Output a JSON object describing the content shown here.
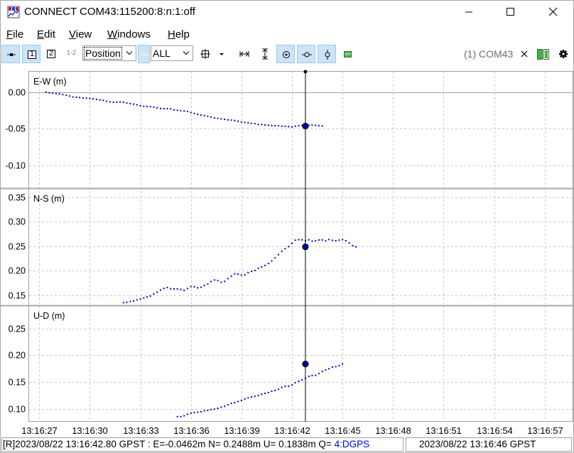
{
  "window": {
    "title": "CONNECT COM43:115200:8:n:1:off",
    "icon": "rtkplot-app-icon"
  },
  "menu": {
    "items": [
      {
        "mnemonic": "F",
        "rest": "ile"
      },
      {
        "mnemonic": "E",
        "rest": "dit"
      },
      {
        "mnemonic": "V",
        "rest": "iew"
      },
      {
        "mnemonic": "W",
        "rest": "indows"
      },
      {
        "mnemonic": "H",
        "rest": "elp"
      }
    ]
  },
  "toolbar": {
    "plot1_label": "1",
    "plot2_label": "2",
    "plot12_label": "1-2",
    "plot_type_value": "Position",
    "sat_filter_value": "ALL",
    "port_label": "(1) COM43"
  },
  "colors": {
    "series": "#0000cc",
    "grid": "#c8c8c8",
    "cursor": "#000000",
    "q_status": "#0000cc"
  },
  "chart_data": {
    "type": "scatter",
    "x_tick_labels": [
      "13:16:27",
      "13:16:30",
      "13:16:33",
      "13:16:36",
      "13:16:39",
      "13:16:42",
      "13:16:45",
      "13:16:48",
      "13:16:51",
      "13:16:54",
      "13:16:57"
    ],
    "x_range_seconds": [
      -0.6,
      31.7
    ],
    "cursor_x": "13:16:42.80",
    "panels": [
      {
        "label": "E-W (m)",
        "ylim": [
          -0.13,
          0.028
        ],
        "yticks": [
          "0.00",
          "-0.05",
          "-0.10"
        ],
        "ytick_values": [
          0.0,
          -0.05,
          -0.1
        ],
        "start_s": 0.4,
        "values": [
          0.0,
          -0.0008,
          -0.0013,
          -0.0018,
          -0.0022,
          -0.0033,
          -0.0041,
          -0.0052,
          -0.0065,
          -0.0068,
          -0.0074,
          -0.0078,
          -0.0082,
          -0.0085,
          -0.009,
          -0.0097,
          -0.0106,
          -0.011,
          -0.0124,
          -0.0132,
          -0.0138,
          -0.0137,
          -0.0132,
          -0.0137,
          -0.0148,
          -0.0156,
          -0.0163,
          -0.0172,
          -0.0183,
          -0.0193,
          -0.0193,
          -0.0197,
          -0.0204,
          -0.0212,
          -0.0222,
          -0.0223,
          -0.0224,
          -0.0227,
          -0.0242,
          -0.0247,
          -0.0251,
          -0.0257,
          -0.0263,
          -0.0278,
          -0.0289,
          -0.0302,
          -0.0312,
          -0.032,
          -0.0328,
          -0.0338,
          -0.0352,
          -0.0357,
          -0.0364,
          -0.037,
          -0.0377,
          -0.0381,
          -0.0386,
          -0.0396,
          -0.0406,
          -0.0412,
          -0.0418,
          -0.0427,
          -0.043,
          -0.0439,
          -0.0441,
          -0.0448,
          -0.0451,
          -0.0456,
          -0.0458,
          -0.0459,
          -0.0463,
          -0.0465,
          -0.047,
          -0.0473,
          -0.0463,
          -0.0457,
          -0.0453,
          -0.045,
          -0.0451,
          -0.0449,
          -0.0453,
          -0.0458,
          -0.0462
        ]
      },
      {
        "label": "N-S (m)",
        "ylim": [
          0.131,
          0.367
        ],
        "yticks": [
          "0.35",
          "0.30",
          "0.25",
          "0.20",
          "0.15"
        ],
        "ytick_values": [
          0.35,
          0.3,
          0.25,
          0.2,
          0.15
        ],
        "start_s": 5.0,
        "values": [
          0.135,
          0.1358,
          0.1373,
          0.1384,
          0.1406,
          0.1423,
          0.1445,
          0.1466,
          0.1487,
          0.1527,
          0.1563,
          0.1606,
          0.1638,
          0.1658,
          0.1633,
          0.1628,
          0.163,
          0.1618,
          0.1599,
          0.1637,
          0.1676,
          0.1674,
          0.1651,
          0.1665,
          0.1703,
          0.1732,
          0.1781,
          0.1812,
          0.1799,
          0.1766,
          0.1784,
          0.184,
          0.1891,
          0.1936,
          0.1929,
          0.191,
          0.1915,
          0.1962,
          0.1988,
          0.2005,
          0.2049,
          0.2078,
          0.2108,
          0.2149,
          0.22,
          0.2264,
          0.233,
          0.2397,
          0.2449,
          0.2493,
          0.2559,
          0.2623,
          0.2635,
          0.2631,
          0.261,
          0.2632,
          0.2605,
          0.261,
          0.2627,
          0.2628,
          0.2608,
          0.2637,
          0.2621,
          0.2611,
          0.2625,
          0.2635,
          0.2613,
          0.2567,
          0.2511,
          0.2488
        ]
      },
      {
        "label": "U-D (m)",
        "ylim": [
          0.076,
          0.292
        ],
        "yticks": [
          "0.25",
          "0.20",
          "0.15",
          "0.10"
        ],
        "ytick_values": [
          0.25,
          0.2,
          0.15,
          0.1
        ],
        "start_s": 8.2,
        "values": [
          0.0855,
          0.0856,
          0.0873,
          0.0901,
          0.092,
          0.0932,
          0.0937,
          0.0947,
          0.0965,
          0.0974,
          0.0985,
          0.0995,
          0.1012,
          0.1033,
          0.1047,
          0.1077,
          0.1104,
          0.1116,
          0.1138,
          0.1159,
          0.1185,
          0.1208,
          0.1225,
          0.1235,
          0.1252,
          0.1273,
          0.129,
          0.1305,
          0.133,
          0.1344,
          0.1366,
          0.1399,
          0.1423,
          0.1422,
          0.1447,
          0.1489,
          0.1514,
          0.1541,
          0.1573,
          0.1608,
          0.1621,
          0.1628,
          0.166,
          0.17,
          0.1725,
          0.175,
          0.1781,
          0.179,
          0.1808,
          0.1838
        ]
      }
    ]
  },
  "status": {
    "prefix": "[R]2023/08/22 13:16:42.80 GPST : E=-0.0462m N= 0.2488m U= 0.1838m Q= ",
    "q_value": "4:DGPS",
    "right": "2023/08/22 13:16:46 GPST"
  }
}
